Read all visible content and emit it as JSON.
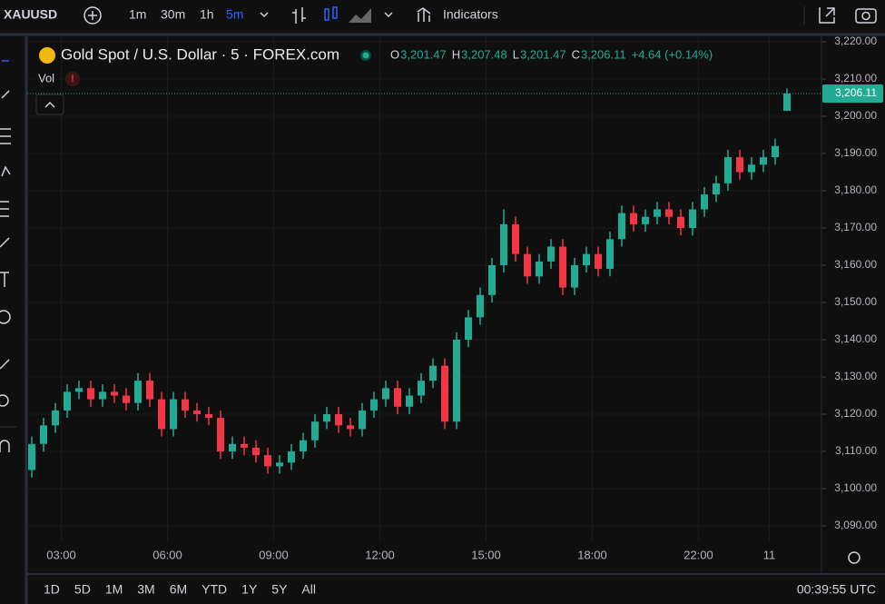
{
  "toolbar": {
    "symbol": "XAUUSD",
    "intervals": [
      "1m",
      "30m",
      "1h",
      "5m"
    ],
    "indicators": "Indicators"
  },
  "legend": {
    "title": "Gold Spot / U.S. Dollar · 5 · FOREX.com",
    "ohlc": [
      [
        "O",
        "3,201.47"
      ],
      [
        "H",
        "3,207.48"
      ],
      [
        "L",
        "3,201.47"
      ],
      [
        "C",
        "3,206.11"
      ]
    ],
    "change": "+4.64 (+0.14%)",
    "vol": "Vol",
    "alert": "!"
  },
  "bottom": {
    "ranges": [
      "1D",
      "5D",
      "1M",
      "3M",
      "6M",
      "YTD",
      "1Y",
      "5Y",
      "All"
    ],
    "clock": "00:39:55 UTC"
  },
  "chart_data": {
    "type": "candlestick",
    "up_color": "#22ab94",
    "down_color": "#f23645",
    "open": [
      3105,
      3112,
      3117,
      3121,
      3126,
      3127,
      3124,
      3126,
      3125,
      3123,
      3129,
      3124,
      3116,
      3124,
      3121,
      3120,
      3119,
      3110,
      3112,
      3111,
      3109,
      3106,
      3107,
      3110,
      3113,
      3118,
      3120,
      3117,
      3116,
      3121,
      3124,
      3127,
      3122,
      3125,
      3129,
      3133,
      3118,
      3140,
      3146,
      3152,
      3160,
      3171,
      3163,
      3157,
      3161,
      3165,
      3154,
      3160,
      3163,
      3159,
      3167,
      3174,
      3171,
      3173,
      3175,
      3173,
      3170,
      3175,
      3179,
      3182,
      3189,
      3185,
      3187,
      3189,
      3201.47
    ],
    "high": [
      3114,
      3119,
      3123,
      3128,
      3129,
      3129,
      3128,
      3128,
      3127,
      3131,
      3131,
      3126,
      3126,
      3126,
      3123,
      3122,
      3121,
      3114,
      3114,
      3113,
      3111,
      3109,
      3112,
      3115,
      3120,
      3122,
      3122,
      3119,
      3123,
      3126,
      3129,
      3129,
      3127,
      3131,
      3135,
      3135,
      3142,
      3148,
      3154,
      3162,
      3175,
      3173,
      3165,
      3163,
      3167,
      3167,
      3162,
      3165,
      3165,
      3169,
      3176,
      3176,
      3175,
      3177,
      3177,
      3175,
      3177,
      3181,
      3184,
      3191,
      3191,
      3189,
      3191,
      3194,
      3207.48
    ],
    "low": [
      3103,
      3110,
      3115,
      3119,
      3124,
      3122,
      3122,
      3123,
      3121,
      3121,
      3122,
      3114,
      3114,
      3119,
      3118,
      3117,
      3108,
      3108,
      3109,
      3107,
      3104,
      3104,
      3105,
      3108,
      3111,
      3116,
      3115,
      3114,
      3114,
      3119,
      3122,
      3120,
      3120,
      3123,
      3127,
      3116,
      3116,
      3138,
      3144,
      3150,
      3158,
      3161,
      3155,
      3155,
      3159,
      3152,
      3152,
      3158,
      3157,
      3157,
      3165,
      3169,
      3169,
      3171,
      3171,
      3168,
      3168,
      3173,
      3177,
      3180,
      3183,
      3183,
      3185,
      3187,
      3201.47
    ],
    "close": [
      3112,
      3117,
      3121,
      3126,
      3127,
      3124,
      3126,
      3125,
      3123,
      3129,
      3124,
      3116,
      3124,
      3121,
      3120,
      3119,
      3110,
      3112,
      3111,
      3109,
      3106,
      3107,
      3110,
      3113,
      3118,
      3120,
      3117,
      3116,
      3121,
      3124,
      3127,
      3122,
      3125,
      3129,
      3133,
      3118,
      3140,
      3146,
      3152,
      3160,
      3171,
      3163,
      3157,
      3161,
      3165,
      3154,
      3160,
      3163,
      3159,
      3167,
      3174,
      3171,
      3173,
      3175,
      3173,
      3170,
      3175,
      3179,
      3182,
      3189,
      3185,
      3187,
      3189,
      3192,
      3206.11
    ],
    "ylim": [
      3090,
      3220
    ],
    "yticks": [
      {
        "value": 3090,
        "label": "3,090.00"
      },
      {
        "value": 3100,
        "label": "3,100.00"
      },
      {
        "value": 3110,
        "label": "3,110.00"
      },
      {
        "value": 3120,
        "label": "3,120.00"
      },
      {
        "value": 3130,
        "label": "3,130.00"
      },
      {
        "value": 3140,
        "label": "3,140.00"
      },
      {
        "value": 3150,
        "label": "3,150.00"
      },
      {
        "value": 3160,
        "label": "3,160.00"
      },
      {
        "value": 3170,
        "label": "3,170.00"
      },
      {
        "value": 3180,
        "label": "3,180.00"
      },
      {
        "value": 3190,
        "label": "3,190.00"
      },
      {
        "value": 3200,
        "label": "3,200.00"
      },
      {
        "value": 3210,
        "label": "3,210.00"
      },
      {
        "value": 3220,
        "label": "3,220.00"
      }
    ],
    "xticks": [
      {
        "value": 2.5,
        "label": "03:00"
      },
      {
        "value": 11.5,
        "label": "06:00"
      },
      {
        "value": 20.5,
        "label": "09:00"
      },
      {
        "value": 29.5,
        "label": "12:00"
      },
      {
        "value": 38.5,
        "label": "15:00"
      },
      {
        "value": 47.5,
        "label": "18:00"
      },
      {
        "value": 56.5,
        "label": "22:00"
      },
      {
        "value": 62.5,
        "label": "11"
      }
    ],
    "last_price": {
      "value": 3206.11,
      "label": "3,206.11"
    }
  }
}
